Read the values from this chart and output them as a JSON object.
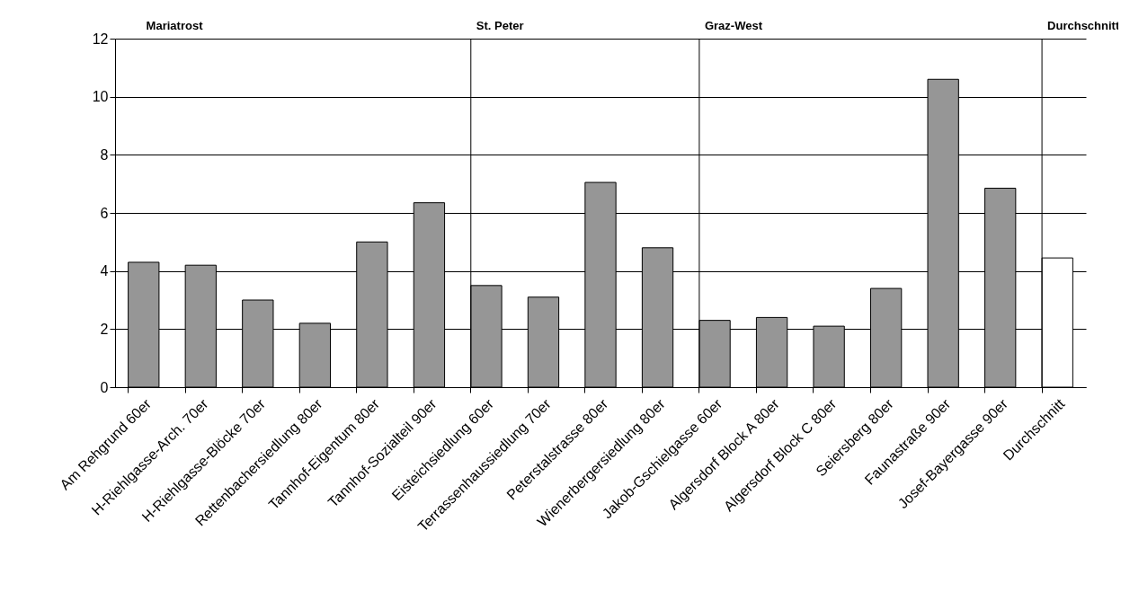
{
  "chart_data": {
    "type": "bar",
    "categories": [
      "Am Rehgrund 60er",
      "H-Riehlgasse-Arch. 70er",
      "H-Riehlgasse-Blöcke 70er",
      "Rettenbachersiedlung 80er",
      "Tannhof-Eigentum 80er",
      "Tannhof-Sozialteil 90er",
      "Eisteichsiedlung 60er",
      "Terrassenhaussiedlung 70er",
      "Peterstalstrasse 80er",
      "Wienerbergersiedlung 80er",
      "Jakob-Gschielgasse 60er",
      "Algersdorf Block A 80er",
      "Algersdorf Block C 80er",
      "Seiersberg 80er",
      "Faunastraße 90er",
      "Josef-Bayergasse 90er",
      "Durchschnitt"
    ],
    "values": [
      4.3,
      4.2,
      3.0,
      2.2,
      5.0,
      6.35,
      3.5,
      3.1,
      7.05,
      4.8,
      2.3,
      2.4,
      2.1,
      3.4,
      10.6,
      6.85,
      4.45
    ],
    "colors": [
      "#969696",
      "#969696",
      "#969696",
      "#969696",
      "#969696",
      "#969696",
      "#969696",
      "#969696",
      "#969696",
      "#969696",
      "#969696",
      "#969696",
      "#969696",
      "#969696",
      "#969696",
      "#969696",
      "#ffffff"
    ],
    "ylim": [
      0,
      12
    ],
    "yticks": [
      0,
      2,
      4,
      6,
      8,
      10,
      12
    ],
    "grid": "y",
    "ref_lines": [
      {
        "axis": "x",
        "value": "Eisteichsiedlung 60er",
        "label": "St. Peter",
        "color": "#000000"
      },
      {
        "axis": "x",
        "value": "Jakob-Gschielgasse 60er",
        "label": "Graz-West",
        "color": "#000000"
      },
      {
        "axis": "x",
        "value": "Durchschnitt",
        "label": "Durchschnitt",
        "color": "#000000"
      }
    ],
    "annotations": [
      "Mariatrost"
    ]
  }
}
